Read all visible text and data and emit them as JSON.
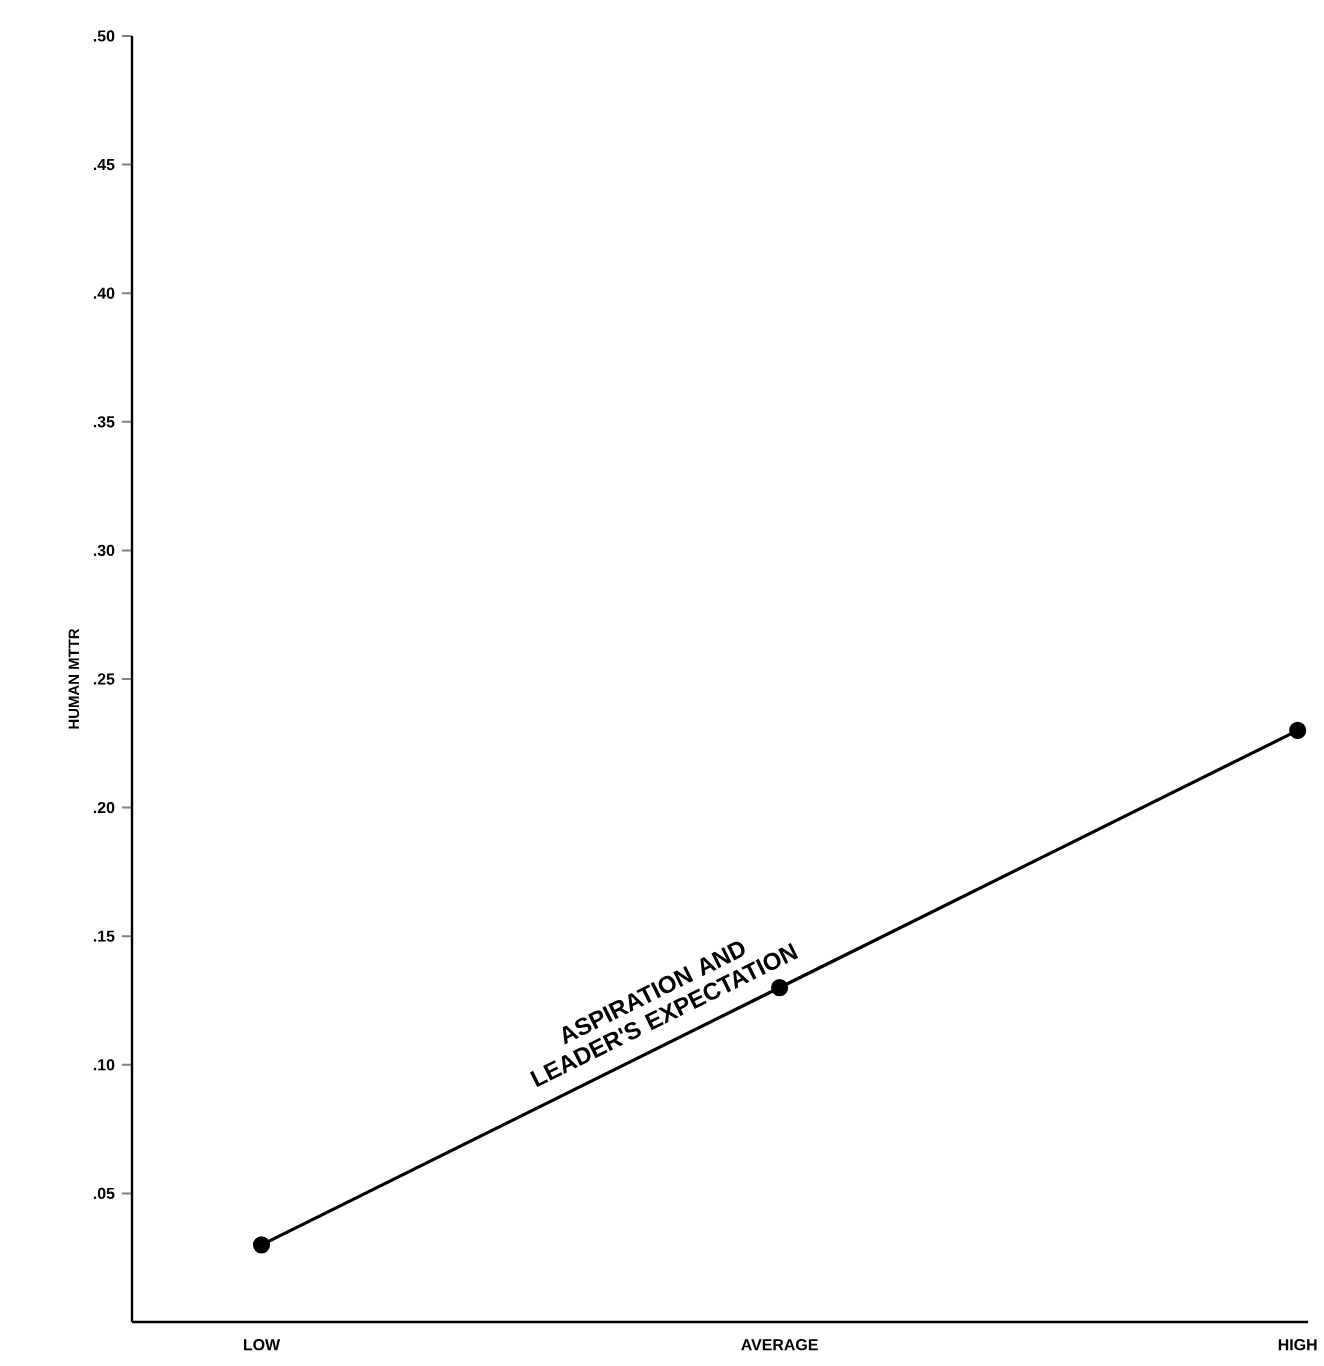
{
  "chart_data": {
    "type": "line",
    "ylabel": "HUMAN MTTR",
    "categories": [
      "LOW",
      "AVERAGE",
      "HIGH"
    ],
    "series": [
      {
        "name": "ASPIRATION AND LEADER'S EXPECTATION",
        "color": "#000000",
        "values": [
          0.03,
          0.13,
          0.23
        ]
      }
    ],
    "ylim": [
      0,
      0.5
    ],
    "yticks": [
      {
        "value": 0.05,
        "label": ".05"
      },
      {
        "value": 0.1,
        "label": ".10"
      },
      {
        "value": 0.15,
        "label": ".15"
      },
      {
        "value": 0.2,
        "label": ".20"
      },
      {
        "value": 0.25,
        "label": ".25"
      },
      {
        "value": 0.3,
        "label": ".30"
      },
      {
        "value": 0.35,
        "label": ".35"
      },
      {
        "value": 0.4,
        "label": ".40"
      },
      {
        "value": 0.45,
        "label": ".45"
      },
      {
        "value": 0.5,
        "label": ".50"
      }
    ],
    "grid": false,
    "legend": false,
    "marker": "circle",
    "line_style": "solid"
  }
}
